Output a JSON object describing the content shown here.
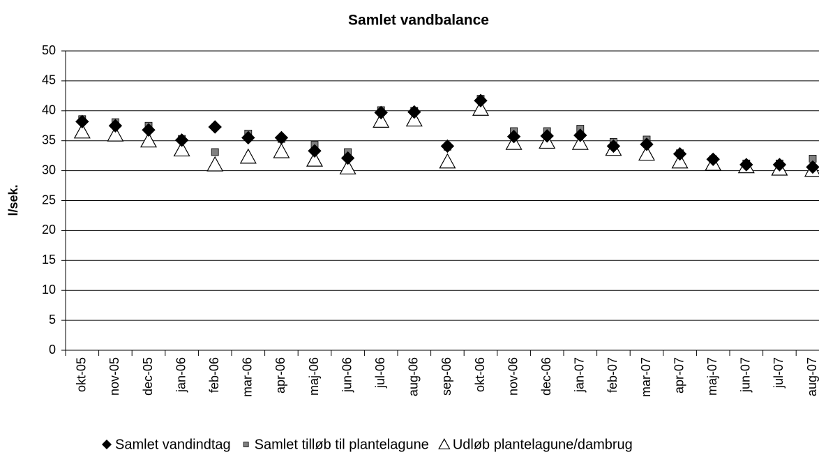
{
  "chart_data": {
    "type": "scatter",
    "title": "Samlet vandbalance",
    "y_label": "l/sek.",
    "categories": [
      "okt-05",
      "nov-05",
      "dec-05",
      "jan-06",
      "feb-06",
      "mar-06",
      "apr-06",
      "maj-06",
      "jun-06",
      "jul-06",
      "aug-06",
      "sep-06",
      "okt-06",
      "nov-06",
      "dec-06",
      "jan-07",
      "feb-07",
      "mar-07",
      "apr-07",
      "maj-07",
      "jun-07",
      "jul-07",
      "aug-07"
    ],
    "series": [
      {
        "name": "Samlet vandindtag",
        "marker": "diamond",
        "color": "#000000",
        "values": [
          38.2,
          37.5,
          36.8,
          35.1,
          37.3,
          35.5,
          35.5,
          33.3,
          32.1,
          39.7,
          39.8,
          34.1,
          41.7,
          35.7,
          35.8,
          35.9,
          34.1,
          34.4,
          32.8,
          31.9,
          31.0,
          31.0,
          30.6
        ]
      },
      {
        "name": "Samlet tilløb til plantelagune",
        "marker": "square",
        "color": "#808080",
        "values": [
          38.6,
          38.1,
          37.5,
          35.3,
          33.1,
          36.2,
          35.3,
          34.3,
          33.1,
          40.1,
          40.0,
          34.0,
          42.0,
          36.6,
          36.6,
          37.0,
          34.8,
          35.2,
          32.9,
          31.9,
          31.2,
          31.2,
          32.0
        ]
      },
      {
        "name": "Udløb plantelagune/dambrug",
        "marker": "triangle",
        "color": "#ffffff",
        "values": [
          36.5,
          36.0,
          35.0,
          33.5,
          31.0,
          32.3,
          33.2,
          31.8,
          30.5,
          38.3,
          38.5,
          31.5,
          40.3,
          34.6,
          34.8,
          34.6,
          33.6,
          32.8,
          31.5,
          31.1,
          30.7,
          30.3,
          30.1
        ]
      }
    ],
    "ylim": [
      0,
      50
    ],
    "yticks": [
      0,
      5,
      10,
      15,
      20,
      25,
      30,
      35,
      40,
      45,
      50
    ],
    "grid": true
  }
}
